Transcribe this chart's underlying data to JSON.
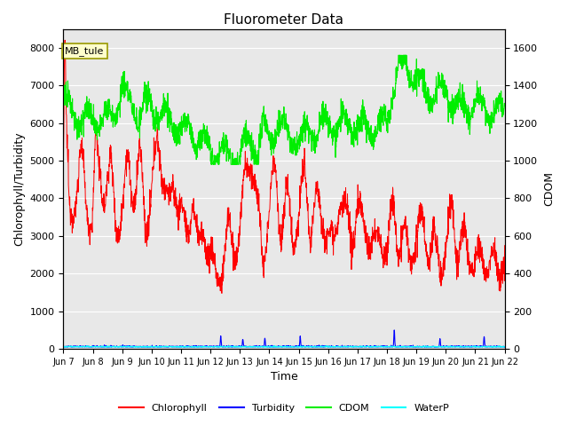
{
  "title": "Fluorometer Data",
  "xlabel": "Time",
  "ylabel_left": "Chlorophyll/Turbidity",
  "ylabel_right": "CDOM",
  "ylim_left": [
    0,
    8500
  ],
  "ylim_right": [
    0,
    1700
  ],
  "yticks_left": [
    0,
    1000,
    2000,
    3000,
    4000,
    5000,
    6000,
    7000,
    8000
  ],
  "yticks_right": [
    0,
    200,
    400,
    600,
    800,
    1000,
    1200,
    1400,
    1600
  ],
  "xlim": [
    7,
    22
  ],
  "xtick_positions": [
    7,
    8,
    9,
    10,
    11,
    12,
    13,
    14,
    15,
    16,
    17,
    18,
    19,
    20,
    21,
    22
  ],
  "xtick_labels": [
    "Jun 7",
    "Jun 8",
    "Jun 9",
    "Jun 10",
    "Jun 11",
    "Jun 12",
    "Jun 13",
    "Jun 14",
    "Jun 15",
    "Jun 16",
    "Jun 17",
    "Jun 18",
    "Jun 19",
    "Jun 20",
    "Jun 21",
    "Jun 22"
  ],
  "annotation_text": "MB_tule",
  "bg_color": "#e8e8e8",
  "title_fontsize": 11,
  "axis_fontsize": 9,
  "tick_fontsize": 8,
  "xtick_fontsize": 7,
  "line_colors": {
    "chlorophyll": "red",
    "turbidity": "blue",
    "cdom": "#00ee00",
    "waterp": "cyan"
  },
  "legend_labels": [
    "Chlorophyll",
    "Turbidity",
    "CDOM",
    "WaterP"
  ],
  "chlorophyll_nodes_x": [
    7.0,
    7.05,
    7.1,
    7.2,
    7.4,
    7.6,
    7.8,
    8.0,
    8.1,
    8.2,
    8.4,
    8.6,
    8.8,
    9.0,
    9.2,
    9.4,
    9.6,
    9.8,
    10.0,
    10.2,
    10.4,
    10.6,
    10.8,
    11.0,
    11.2,
    11.4,
    11.6,
    11.8,
    12.0,
    12.2,
    12.4,
    12.6,
    12.8,
    13.0,
    13.2,
    13.4,
    13.6,
    13.8,
    14.0,
    14.2,
    14.4,
    14.6,
    14.8,
    15.0,
    15.2,
    15.4,
    15.6,
    15.8,
    16.0,
    16.2,
    16.4,
    16.6,
    16.8,
    17.0,
    17.2,
    17.4,
    17.6,
    17.8,
    18.0,
    18.2,
    18.4,
    18.6,
    18.8,
    19.0,
    19.2,
    19.4,
    19.6,
    19.8,
    20.0,
    20.2,
    20.4,
    20.6,
    20.8,
    21.0,
    21.2,
    21.4,
    21.6,
    21.8,
    22.0
  ],
  "chlorophyll_nodes_y": [
    4800,
    8100,
    5500,
    3500,
    4200,
    4900,
    3900,
    3500,
    5500,
    4600,
    4300,
    4700,
    3400,
    3700,
    4900,
    4100,
    5000,
    3200,
    4200,
    5400,
    4800,
    3700,
    4300,
    3900,
    2600,
    4300,
    2500,
    3100,
    2600,
    1700,
    2200,
    3200,
    2500,
    3200,
    4700,
    5100,
    3700,
    2300,
    3800,
    4800,
    3100,
    4100,
    3000,
    3500,
    4800,
    3000,
    4100,
    3500,
    3000,
    2800,
    4000,
    3500,
    2800,
    3900,
    3200,
    3000,
    2700,
    3000,
    2500,
    3900,
    2700,
    3000,
    2400,
    2900,
    3500,
    2500,
    2900,
    2200,
    2600,
    3800,
    2500,
    3000,
    2400,
    2300,
    2400,
    2200,
    2400,
    2100,
    2400
  ],
  "cdom_nodes_x": [
    7.0,
    7.2,
    7.5,
    7.8,
    8.0,
    8.3,
    8.7,
    9.0,
    9.2,
    9.5,
    9.8,
    10.0,
    10.3,
    10.7,
    11.0,
    11.3,
    11.7,
    12.0,
    12.3,
    12.7,
    13.0,
    13.2,
    13.4,
    13.6,
    13.8,
    14.0,
    14.3,
    14.7,
    15.0,
    15.3,
    15.7,
    16.0,
    16.3,
    16.7,
    17.0,
    17.3,
    17.7,
    18.0,
    18.2,
    18.4,
    18.6,
    18.8,
    19.0,
    19.5,
    20.0,
    20.5,
    21.0,
    21.5,
    22.0
  ],
  "cdom_nodes_y": [
    1340,
    1280,
    1240,
    1230,
    1220,
    1230,
    1220,
    1410,
    1310,
    1260,
    1290,
    1270,
    1260,
    1190,
    1160,
    1170,
    1100,
    1050,
    1040,
    1000,
    1030,
    1090,
    1100,
    1050,
    1160,
    1130,
    1190,
    1120,
    1100,
    1170,
    1150,
    1200,
    1180,
    1200,
    1180,
    1180,
    1170,
    1220,
    1380,
    1490,
    1500,
    1500,
    1420,
    1350,
    1370,
    1270,
    1310,
    1250,
    1260
  ],
  "turb_spike_x": [
    12.35,
    13.1,
    13.85,
    15.05,
    18.25,
    19.8,
    21.3
  ],
  "turb_spike_h": [
    280,
    200,
    230,
    270,
    450,
    200,
    270
  ],
  "waterp_base": 50,
  "turb_base": 50
}
